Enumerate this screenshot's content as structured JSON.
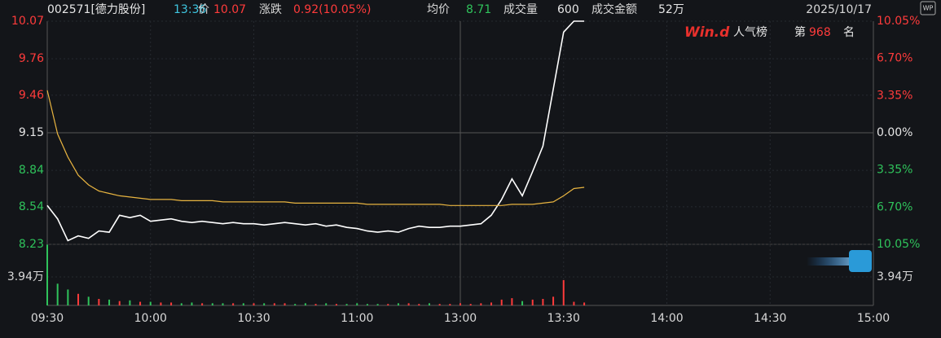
{
  "header": {
    "code": "002571[德力股份]",
    "time": "13:36",
    "price_label": "价",
    "price": "10.07",
    "change_label": "涨跌",
    "change": "0.92(10.05%)",
    "avg_label": "均价",
    "avg": "8.71",
    "volume_label": "成交量",
    "volume": "600",
    "amount_label": "成交金额",
    "amount": "52万",
    "date": "2025/10/17",
    "brand": "Win.d",
    "rank_label": "人气榜",
    "rank_prefix": "第",
    "rank": "968",
    "rank_suffix": "名"
  },
  "chart_data": {
    "type": "line",
    "categories": [
      "09:30",
      null,
      null,
      null,
      null,
      null,
      null,
      null,
      null,
      null,
      "10:00",
      null,
      null,
      null,
      null,
      null,
      null,
      null,
      null,
      null,
      "10:30",
      null,
      null,
      null,
      null,
      null,
      null,
      null,
      null,
      null,
      "11:00",
      null,
      null,
      null,
      null,
      null,
      null,
      null,
      null,
      null,
      "13:00",
      null,
      null,
      null,
      null,
      null,
      null,
      null,
      null,
      null,
      "13:30",
      null,
      null,
      null,
      null,
      null,
      null,
      null,
      null,
      null,
      "14:00",
      null,
      null,
      null,
      null,
      null,
      null,
      null,
      null,
      null,
      "14:30",
      null,
      null,
      null,
      null,
      null,
      null,
      null,
      null,
      null,
      "15:00"
    ],
    "series": [
      {
        "name": "价",
        "color": "#ffffff",
        "values": [
          8.55,
          8.44,
          8.26,
          8.3,
          8.28,
          8.34,
          8.33,
          8.47,
          8.45,
          8.47,
          8.42,
          8.43,
          8.44,
          8.42,
          8.41,
          8.42,
          8.41,
          8.4,
          8.41,
          8.4,
          8.4,
          8.39,
          8.4,
          8.41,
          8.4,
          8.39,
          8.4,
          8.38,
          8.39,
          8.37,
          8.36,
          8.34,
          8.33,
          8.34,
          8.33,
          8.36,
          8.38,
          8.37,
          8.37,
          8.38,
          8.38,
          8.39,
          8.4,
          8.47,
          8.6,
          8.77,
          8.63,
          8.83,
          9.04,
          9.51,
          9.98,
          10.07,
          10.07,
          null,
          null,
          null,
          null,
          null,
          null,
          null,
          null,
          null,
          null,
          null,
          null,
          null,
          null,
          null,
          null,
          null,
          null,
          null,
          null,
          null,
          null,
          null,
          null,
          null,
          null,
          null,
          null
        ]
      },
      {
        "name": "均价",
        "color": "#e8b440",
        "values": [
          9.5,
          9.14,
          8.95,
          8.8,
          8.72,
          8.67,
          8.65,
          8.63,
          8.62,
          8.61,
          8.6,
          8.6,
          8.6,
          8.59,
          8.59,
          8.59,
          8.59,
          8.58,
          8.58,
          8.58,
          8.58,
          8.58,
          8.58,
          8.58,
          8.57,
          8.57,
          8.57,
          8.57,
          8.57,
          8.57,
          8.57,
          8.56,
          8.56,
          8.56,
          8.56,
          8.56,
          8.56,
          8.56,
          8.56,
          8.55,
          8.55,
          8.55,
          8.55,
          8.55,
          8.55,
          8.56,
          8.56,
          8.56,
          8.57,
          8.58,
          8.63,
          8.69,
          8.7,
          null,
          null,
          null,
          null,
          null,
          null,
          null,
          null,
          null,
          null,
          null,
          null,
          null,
          null,
          null,
          null,
          null,
          null,
          null,
          null,
          null,
          null,
          null,
          null,
          null,
          null,
          null,
          null
        ]
      }
    ],
    "volume": [
      8.4,
      3.0,
      2.2,
      1.6,
      1.2,
      0.9,
      0.8,
      0.6,
      0.7,
      0.5,
      0.5,
      0.4,
      0.4,
      0.3,
      0.4,
      0.3,
      0.3,
      0.3,
      0.3,
      0.3,
      0.3,
      0.3,
      0.3,
      0.3,
      0.2,
      0.3,
      0.2,
      0.3,
      0.2,
      0.2,
      0.3,
      0.2,
      0.2,
      0.2,
      0.3,
      0.3,
      0.2,
      0.3,
      0.2,
      0.2,
      0.3,
      0.2,
      0.3,
      0.4,
      0.8,
      1.0,
      0.6,
      0.8,
      0.9,
      1.2,
      3.5,
      0.5,
      0.4,
      null,
      null,
      null,
      null,
      null,
      null,
      null,
      null,
      null,
      null,
      null,
      null,
      null,
      null,
      null,
      null,
      null,
      null,
      null,
      null,
      null,
      null,
      null,
      null,
      null,
      null,
      null,
      null
    ],
    "ylim": [
      8.23,
      10.07
    ],
    "yticks": [
      10.07,
      9.76,
      9.46,
      9.15,
      8.84,
      8.54,
      8.23
    ],
    "y2lim": [
      -10.05,
      10.05
    ],
    "y2ticks": [
      {
        "value": 10.05,
        "label": "10.05%"
      },
      {
        "value": 6.7,
        "label": "6.70%"
      },
      {
        "value": 3.35,
        "label": "3.35%"
      },
      {
        "value": 0,
        "label": "0.00%"
      },
      {
        "value": -3.35,
        "label": "3.35%"
      },
      {
        "value": -6.7,
        "label": "6.70%"
      },
      {
        "value": -10.05,
        "label": "10.05%"
      }
    ],
    "vol_ylim": [
      0,
      8.44
    ],
    "vol_ticks": [
      {
        "value": 3.94,
        "label": "3.94万"
      }
    ],
    "up_color": "#ff3b3b",
    "down_color": "#2fc25b"
  }
}
